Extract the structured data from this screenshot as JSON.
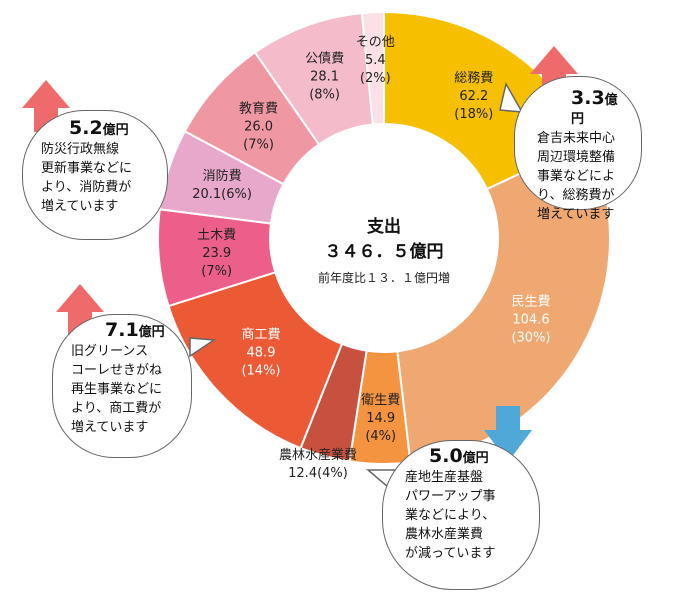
{
  "chart_data": {
    "type": "pie",
    "center": {
      "title": "支出",
      "total": "３４６．５億円",
      "sub": "前年度比１３．１億円増"
    },
    "slices": [
      {
        "name": "総務費",
        "value": 62.2,
        "value_label": "62.2",
        "pct_label": "(18%)",
        "color": "#f6c000",
        "light": false
      },
      {
        "name": "民生費",
        "value": 104.6,
        "value_label": "104.6",
        "pct_label": "(30%)",
        "color": "#f0a872",
        "light": true
      },
      {
        "name": "衛生費",
        "value": 14.9,
        "value_label": "14.9",
        "pct_label": "(4%)",
        "color": "#f49340",
        "light": false
      },
      {
        "name": "農林水産業費",
        "value": 12.4,
        "value_label": "12.4(4%)",
        "pct_label": "",
        "color": "#c8503e",
        "light": false
      },
      {
        "name": "商工費",
        "value": 48.9,
        "value_label": "48.9",
        "pct_label": "(14%)",
        "color": "#ec5a35",
        "light": true
      },
      {
        "name": "土木費",
        "value": 23.9,
        "value_label": "23.9",
        "pct_label": "(7%)",
        "color": "#ec5f8a",
        "light": false
      },
      {
        "name": "消防費",
        "value": 20.1,
        "value_label": "20.1(6%)",
        "pct_label": "",
        "color": "#e7a8cb",
        "light": false
      },
      {
        "name": "教育費",
        "value": 26.0,
        "value_label": "26.0",
        "pct_label": "(7%)",
        "color": "#f097a4",
        "light": false
      },
      {
        "name": "公債費",
        "value": 28.1,
        "value_label": "28.1",
        "pct_label": "(8%)",
        "color": "#f4bccb",
        "light": false
      },
      {
        "name": "その他",
        "value": 5.4,
        "value_label": "5.4",
        "pct_label": "(2%)",
        "color": "#fbe0e6",
        "light": false
      }
    ]
  },
  "callouts": {
    "soumu": {
      "direction": "up",
      "amount": "3.3",
      "unit": "億円",
      "text": "倉吉未来中心\n周辺環境整備\n事業などによ\nり、総務費が\n増えています"
    },
    "shoubou": {
      "direction": "up",
      "amount": "5.2",
      "unit": "億円",
      "text": "防災行政無線\n更新事業などに\nより、消防費が\n増えています"
    },
    "shoukou": {
      "direction": "up",
      "amount": "7.1",
      "unit": "億円",
      "text": "旧グリーンス\nコーレせきがね\n再生事業などに\nより、商工費が\n増えています"
    },
    "nourin": {
      "direction": "down",
      "amount": "5.0",
      "unit": "億円",
      "text": "産地生産基盤\nパワーアップ事\n業などにより、\n農林水産業費\nが減っています"
    }
  },
  "colors": {
    "arrow_up": "#ef6a6a",
    "arrow_down": "#4fa8d8"
  }
}
